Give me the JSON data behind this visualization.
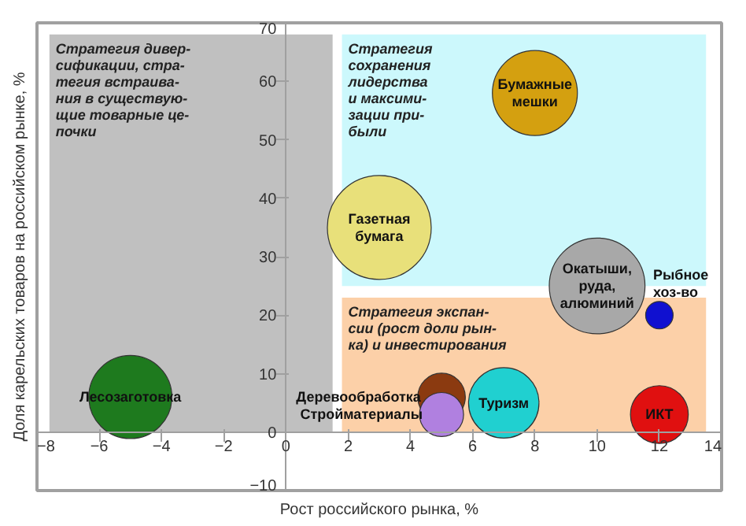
{
  "chart_data": {
    "type": "bubble",
    "xlabel": "Рост российского рынка, %",
    "ylabel": "Доля карельских товаров на российском рынке, %",
    "xlim": [
      -8,
      14
    ],
    "ylim": [
      -10,
      70
    ],
    "xticks": [
      -8,
      -6,
      -4,
      -2,
      0,
      2,
      4,
      6,
      8,
      10,
      12,
      14
    ],
    "yticks": [
      -10,
      0,
      10,
      20,
      30,
      40,
      50,
      60,
      70
    ],
    "grid": false,
    "bands": [
      {
        "axis": "x",
        "from": -7.6,
        "to": 1.5,
        "color": "#c0c0c0",
        "label": "Стратегия дивер-\nсификации, стра-\nтегия встраива-\nния в существую-\nщие товарные це-\nпочки"
      },
      {
        "axis": "y",
        "from": 25,
        "to": 68,
        "color": "#ccf8fc",
        "label": "Стратегия\nсохранения\nлидерства\nи максими-\nзации при-\nбыли"
      },
      {
        "axis": "y",
        "from": 0,
        "to": 23,
        "color": "#fcd0a8",
        "label": "Стратегия экспан-\nсии (рост доли рын-\nка) и инвестирования"
      }
    ],
    "series": [
      {
        "name": "Лесозаготовка",
        "color": "#1e7a1e",
        "x": [
          -5
        ],
        "values": [
          6
        ],
        "sizes": [
          0.64
        ]
      },
      {
        "name": "Газетная\nбумага",
        "color": "#e8e07a",
        "x": [
          3
        ],
        "values": [
          35
        ],
        "sizes": [
          1
        ]
      },
      {
        "name": "Бумажные\nмешки",
        "color": "#d4a010",
        "x": [
          8
        ],
        "values": [
          58
        ],
        "sizes": [
          0.67
        ]
      },
      {
        "name": "Окатыши,\nруда,\nалюминий",
        "color": "#a8a8a8",
        "x": [
          10
        ],
        "values": [
          25
        ],
        "sizes": [
          0.85
        ]
      },
      {
        "name": "Рыбное\nхоз-во",
        "color": "#1010d0",
        "x": [
          12
        ],
        "values": [
          20
        ],
        "sizes": [
          0.07
        ]
      },
      {
        "name": "Деревообработка",
        "color": "#8b3a10",
        "x": [
          5
        ],
        "values": [
          6
        ],
        "sizes": [
          0.21
        ]
      },
      {
        "name": "Стройматериалы",
        "color": "#b080e0",
        "x": [
          5
        ],
        "values": [
          3
        ],
        "sizes": [
          0.18
        ]
      },
      {
        "name": "Туризм",
        "color": "#20d0d0",
        "x": [
          7
        ],
        "values": [
          5
        ],
        "sizes": [
          0.46
        ]
      },
      {
        "name": "ИКТ",
        "color": "#e01010",
        "x": [
          12
        ],
        "values": [
          3
        ],
        "sizes": [
          0.31
        ]
      }
    ]
  }
}
